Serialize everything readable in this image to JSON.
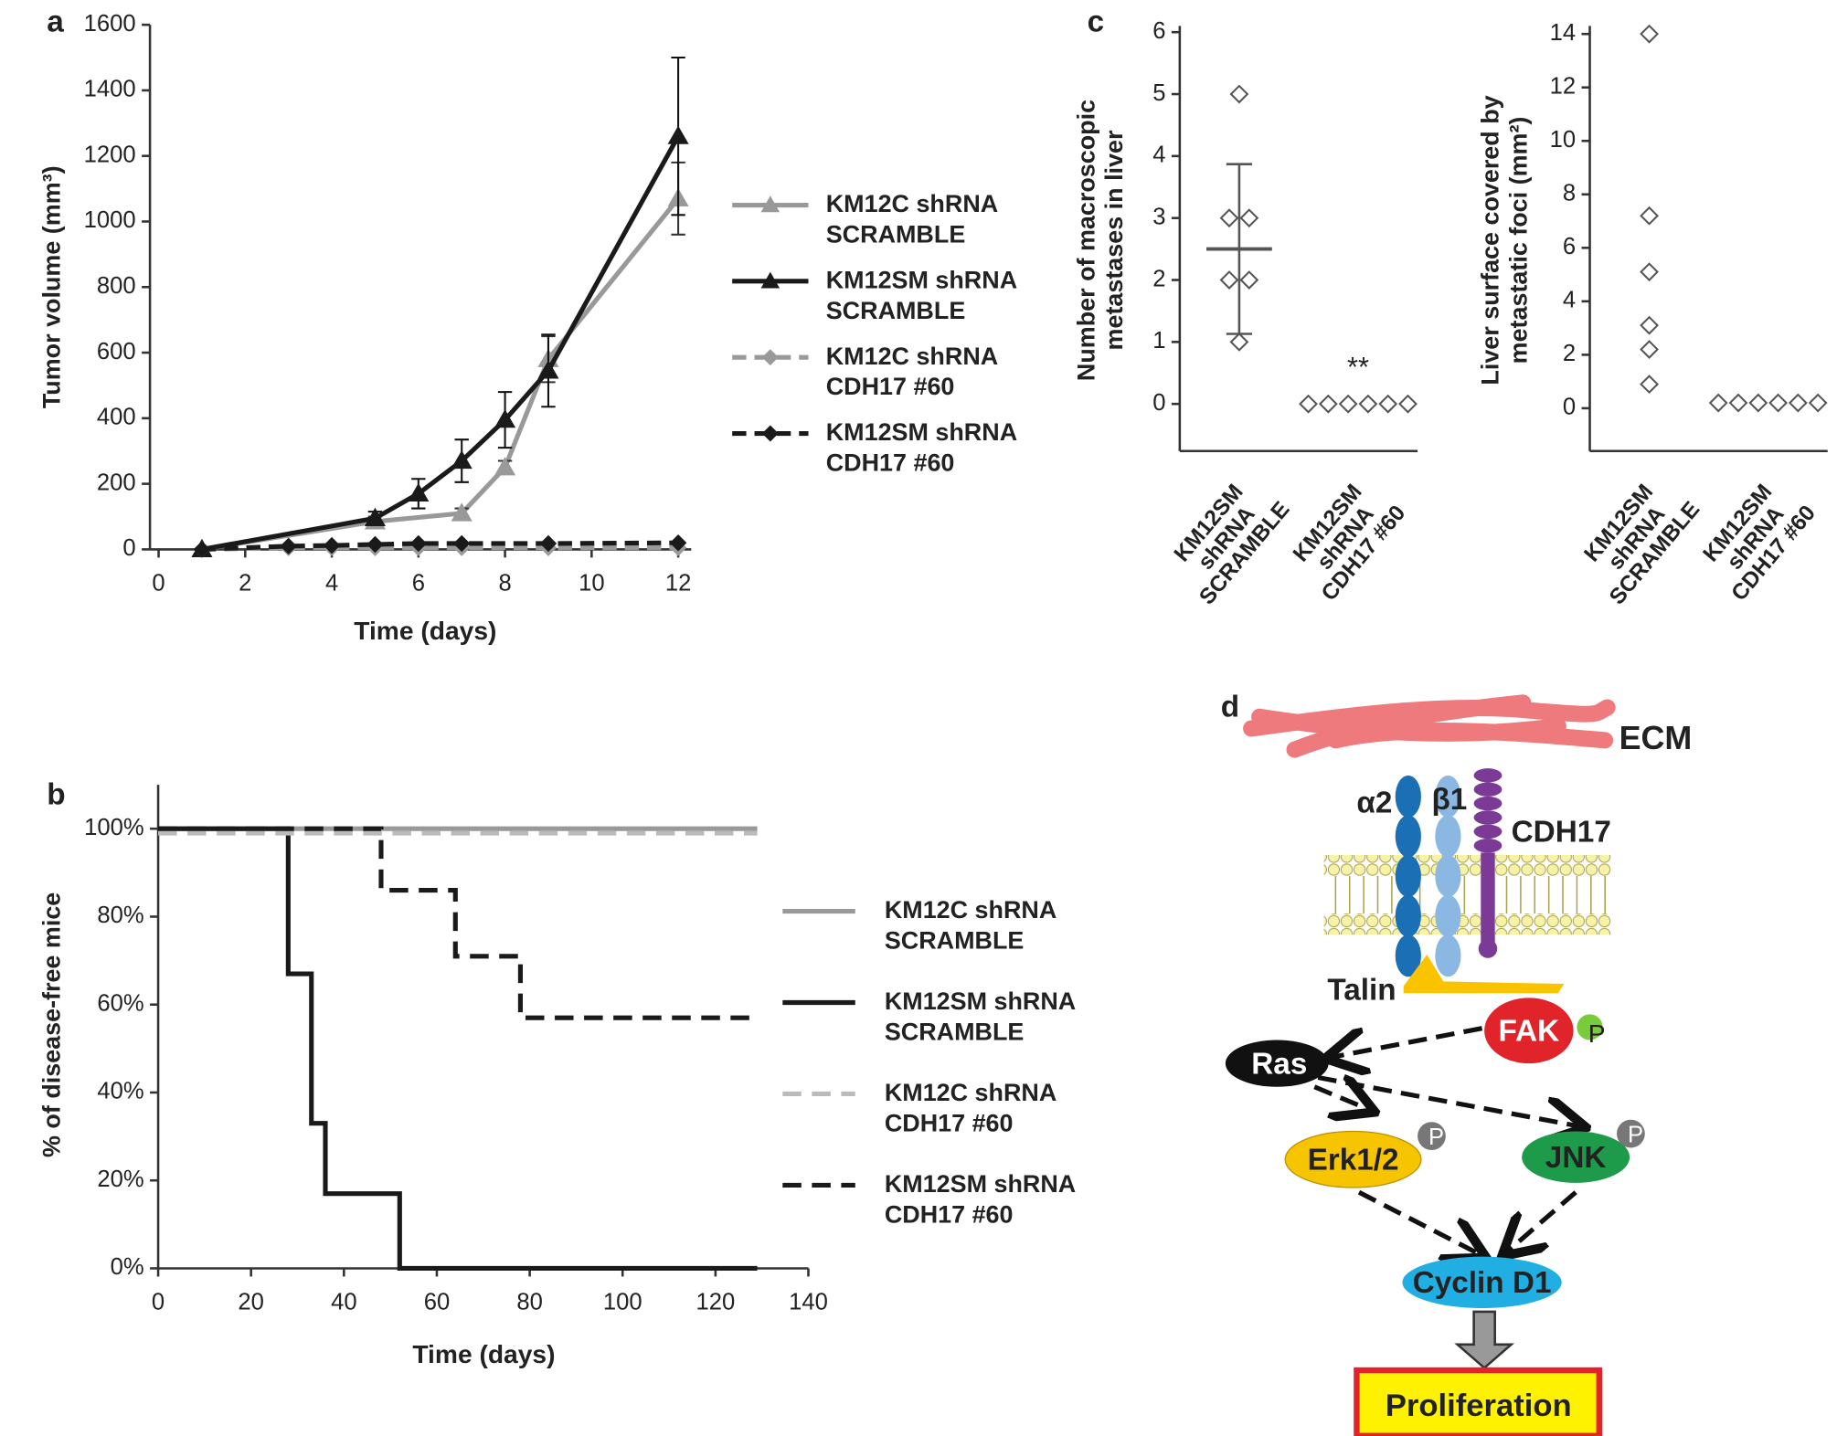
{
  "chart_data": [
    {
      "type": "line",
      "label": "a",
      "x_label": "Time (days)",
      "y_label": "Tumor volume (mm³)",
      "xlim": [
        -0.2,
        12.3
      ],
      "xticks": [
        0,
        2,
        4,
        6,
        8,
        10,
        12
      ],
      "ylim": [
        0,
        1600
      ],
      "yticks": [
        0,
        200,
        400,
        600,
        800,
        1000,
        1200,
        1400,
        1600
      ],
      "series": [
        {
          "name": "KM12C shRNA SCRAMBLE",
          "color": "#999999",
          "style": "solid",
          "marker": "triangle",
          "x": [
            1,
            5,
            7,
            8,
            9,
            12
          ],
          "values": [
            0,
            85,
            110,
            250,
            580,
            1070
          ],
          "errors": [
            0,
            15,
            15,
            20,
            70,
            110
          ]
        },
        {
          "name": "KM12SM shRNA SCRAMBLE",
          "color": "#1a1a1a",
          "style": "solid",
          "marker": "triangle",
          "x": [
            1,
            5,
            6,
            7,
            8,
            9,
            12
          ],
          "values": [
            0,
            95,
            170,
            270,
            395,
            545,
            1260
          ],
          "errors": [
            0,
            20,
            45,
            65,
            85,
            110,
            240
          ]
        },
        {
          "name": "KM12C shRNA CDH17 #60",
          "color": "#9a9a9a",
          "style": "dashed",
          "marker": "diamond",
          "x": [
            1,
            3,
            4,
            5,
            6,
            7,
            9,
            12
          ],
          "values": [
            0,
            5,
            5,
            5,
            5,
            5,
            5,
            5
          ]
        },
        {
          "name": "KM12SM shRNA CDH17 #60",
          "color": "#1a1a1a",
          "style": "dashed",
          "marker": "diamond",
          "x": [
            1,
            3,
            4,
            5,
            6,
            7,
            9,
            12
          ],
          "values": [
            0,
            10,
            12,
            15,
            18,
            18,
            18,
            20
          ]
        }
      ]
    },
    {
      "type": "step",
      "label": "b",
      "x_label": "Time (days)",
      "y_label": "% of disease-free mice",
      "xlim": [
        0,
        140
      ],
      "xticks": [
        0,
        20,
        40,
        60,
        80,
        100,
        120,
        140
      ],
      "ylim": [
        0,
        110
      ],
      "yticks": [
        {
          "value": 0,
          "label": "0%"
        },
        {
          "value": 20,
          "label": "20%"
        },
        {
          "value": 40,
          "label": "40%"
        },
        {
          "value": 60,
          "label": "60%"
        },
        {
          "value": 80,
          "label": "80%"
        },
        {
          "value": 100,
          "label": "100%"
        }
      ],
      "series": [
        {
          "name": "KM12C shRNA SCRAMBLE",
          "color": "#999999",
          "style": "solid",
          "x": [
            0,
            129
          ],
          "values": [
            100,
            100
          ]
        },
        {
          "name": "KM12SM shRNA SCRAMBLE",
          "color": "#1a1a1a",
          "style": "solid",
          "x": [
            0,
            28,
            33,
            36,
            52,
            129
          ],
          "values": [
            100,
            67,
            33,
            17,
            0,
            0
          ]
        },
        {
          "name": "KM12C shRNA CDH17 #60",
          "color": "#bbbbbb",
          "style": "dashed",
          "x": [
            0,
            129
          ],
          "values": [
            99,
            99
          ]
        },
        {
          "name": "KM12SM shRNA CDH17 #60",
          "color": "#1a1a1a",
          "style": "dashed",
          "x": [
            0,
            48,
            64,
            78,
            129
          ],
          "values": [
            100,
            86,
            71,
            57,
            57
          ]
        }
      ]
    },
    {
      "type": "strip",
      "label": "c",
      "y_label": "Number of macroscopic metastases in liver",
      "categories": [
        "KM12SM shRNA SCRAMBLE",
        "KM12SM shRNA CDH17 #60"
      ],
      "ylim": [
        -0.76,
        6.1
      ],
      "yticks": [
        0,
        1,
        2,
        3,
        4,
        5,
        6
      ],
      "color": "#555555",
      "points": [
        [
          5,
          3,
          3,
          2,
          2,
          1
        ],
        [
          0,
          0,
          0,
          0,
          0,
          0
        ]
      ],
      "mean": 2.5,
      "sd": 1.37,
      "annotation": "**"
    },
    {
      "type": "strip",
      "y_label": "Liver surface covered by metastatic foci (mm²)",
      "categories": [
        "KM12SM shRNA SCRAMBLE",
        "KM12SM shRNA CDH17 #60"
      ],
      "ylim": [
        -1.6,
        14.3
      ],
      "yticks": [
        0,
        2,
        4,
        6,
        8,
        10,
        12,
        14
      ],
      "color": "#555555",
      "points": [
        [
          14,
          7.2,
          5.1,
          3.1,
          2.2,
          0.9
        ],
        [
          0.2,
          0.2,
          0.2,
          0.2,
          0.2,
          0.2
        ]
      ]
    }
  ],
  "diagram": {
    "label": "d",
    "ecm": "ECM",
    "receptors": [
      "α2",
      "β1",
      "CDH17"
    ],
    "talin": "Talin",
    "nodes": [
      {
        "name": "FAK",
        "phospho": "P"
      },
      {
        "name": "Ras"
      },
      {
        "name": "Erk1/2",
        "phospho": "P"
      },
      {
        "name": "JNK",
        "phospho": "P"
      },
      {
        "name": "Cyclin D1"
      }
    ],
    "output": "Proliferation"
  }
}
